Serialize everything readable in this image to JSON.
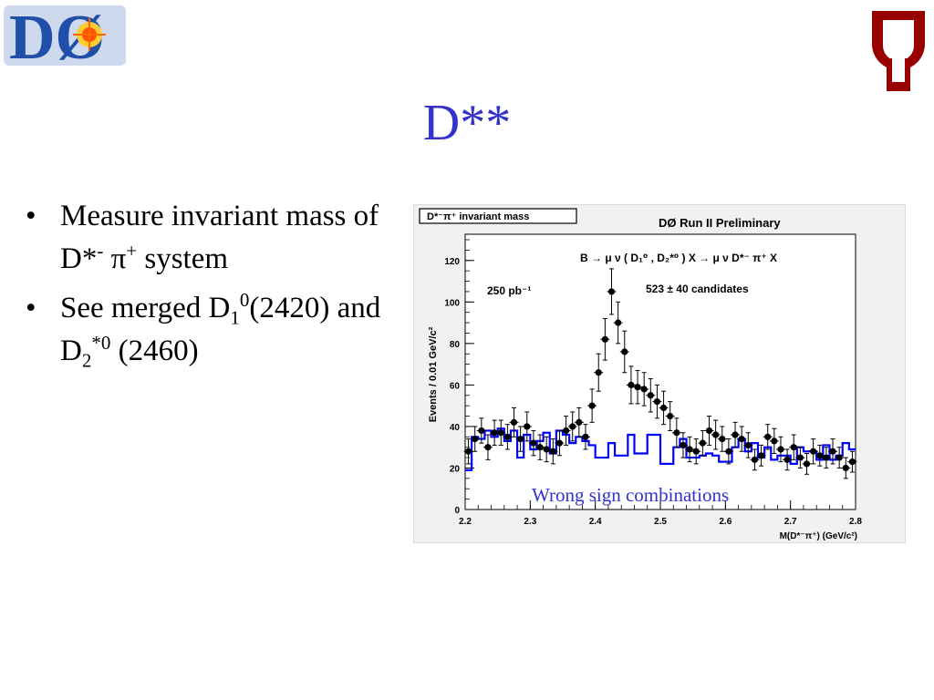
{
  "slide": {
    "title": "D**",
    "bullets": [
      {
        "bullet": "•",
        "parts": [
          {
            "t": "Measure invariant mass of D*"
          },
          {
            "t": "-",
            "sup": true
          },
          {
            "t": " π"
          },
          {
            "t": "+",
            "sup": true
          },
          {
            "t": " system"
          }
        ]
      },
      {
        "bullet": "•",
        "parts": [
          {
            "t": "See merged D"
          },
          {
            "t": "1",
            "sub": true
          },
          {
            "t": "0",
            "sup": true
          },
          {
            "t": "(2420) and D"
          },
          {
            "t": "2",
            "sub": true
          },
          {
            "t": "*0",
            "sup": true
          },
          {
            "t": " (2460)"
          }
        ]
      }
    ]
  },
  "logos": {
    "d0_text": "DØ",
    "ou_text": "OU",
    "d0_color": "#1f4fa8",
    "ou_color": "#990000"
  },
  "colors": {
    "title": "#3333cc",
    "wrong_sign": "#0000ff",
    "data": "#000000",
    "annotation": "#3333cc"
  },
  "chart_data": {
    "type": "scatter",
    "title_box": "D*⁻π⁺ invariant mass",
    "header": "DØ Run II Preliminary",
    "process": "B → μ ν ( D₁⁰ , D₂*⁰ ) X → μ ν D*⁻ π⁺ X",
    "luminosity": "250 pb⁻¹",
    "candidates": "523 ± 40 candidates",
    "ylabel": "Events / 0.01 GeV/c²",
    "xlabel": "M(D*⁻π⁺) (GeV/c²)",
    "xlim": [
      2.2,
      2.8
    ],
    "ylim": [
      0,
      130
    ],
    "xticks": [
      2.2,
      2.3,
      2.4,
      2.5,
      2.6,
      2.7,
      2.8
    ],
    "yticks": [
      0,
      20,
      40,
      60,
      80,
      100,
      120
    ],
    "annotation": "Wrong sign combinations",
    "series": [
      {
        "kind": "data-points",
        "x": [
          2.205,
          2.215,
          2.225,
          2.235,
          2.245,
          2.255,
          2.265,
          2.275,
          2.285,
          2.295,
          2.305,
          2.315,
          2.325,
          2.335,
          2.345,
          2.355,
          2.365,
          2.375,
          2.385,
          2.395,
          2.405,
          2.415,
          2.425,
          2.435,
          2.445,
          2.455,
          2.465,
          2.475,
          2.485,
          2.495,
          2.505,
          2.515,
          2.525,
          2.535,
          2.545,
          2.555,
          2.565,
          2.575,
          2.585,
          2.595,
          2.605,
          2.615,
          2.625,
          2.635,
          2.645,
          2.655,
          2.665,
          2.675,
          2.685,
          2.695,
          2.705,
          2.715,
          2.725,
          2.735,
          2.745,
          2.755,
          2.765,
          2.775,
          2.785,
          2.795
        ],
        "y": [
          28,
          34,
          38,
          30,
          37,
          37,
          35,
          42,
          34,
          40,
          32,
          30,
          29,
          28,
          32,
          38,
          40,
          42,
          35,
          50,
          66,
          82,
          105,
          90,
          76,
          60,
          59,
          58,
          55,
          52,
          49,
          45,
          37,
          31,
          29,
          28,
          32,
          38,
          36,
          34,
          28,
          36,
          34,
          31,
          24,
          26,
          35,
          33,
          29,
          24,
          30,
          25,
          22,
          28,
          26,
          25,
          28,
          25,
          20,
          23
        ],
        "err": [
          6,
          6,
          6,
          6,
          6,
          6,
          6,
          7,
          6,
          7,
          6,
          6,
          6,
          6,
          6,
          7,
          7,
          7,
          6,
          8,
          9,
          10,
          11,
          10,
          10,
          9,
          8,
          8,
          8,
          8,
          8,
          7,
          7,
          6,
          6,
          6,
          6,
          7,
          7,
          6,
          6,
          6,
          6,
          6,
          5,
          5,
          6,
          6,
          6,
          5,
          6,
          5,
          5,
          6,
          5,
          5,
          6,
          5,
          5,
          5
        ]
      },
      {
        "kind": "wrong-sign-histogram",
        "edges": [
          2.2,
          2.21,
          2.22,
          2.23,
          2.24,
          2.25,
          2.26,
          2.27,
          2.28,
          2.29,
          2.3,
          2.31,
          2.32,
          2.33,
          2.34,
          2.35,
          2.36,
          2.37,
          2.38,
          2.39,
          2.4,
          2.41,
          2.42,
          2.43,
          2.44,
          2.45,
          2.46,
          2.47,
          2.48,
          2.49,
          2.5,
          2.51,
          2.52,
          2.53,
          2.54,
          2.55,
          2.56,
          2.57,
          2.58,
          2.59,
          2.6,
          2.61,
          2.62,
          2.63,
          2.64,
          2.65,
          2.66,
          2.67,
          2.68,
          2.69,
          2.7,
          2.71,
          2.72,
          2.73,
          2.74,
          2.75,
          2.76,
          2.77,
          2.78,
          2.79,
          2.8
        ],
        "values": [
          19,
          35,
          34,
          38,
          35,
          39,
          33,
          38,
          25,
          36,
          29,
          33,
          37,
          27,
          38,
          36,
          32,
          35,
          33,
          31,
          25,
          25,
          32,
          26,
          26,
          36,
          27,
          27,
          36,
          36,
          22,
          22,
          30,
          34,
          25,
          25,
          26,
          27,
          26,
          23,
          23,
          30,
          34,
          28,
          32,
          25,
          30,
          24,
          26,
          26,
          22,
          30,
          28,
          28,
          24,
          31,
          24,
          26,
          32,
          29
        ]
      }
    ]
  }
}
